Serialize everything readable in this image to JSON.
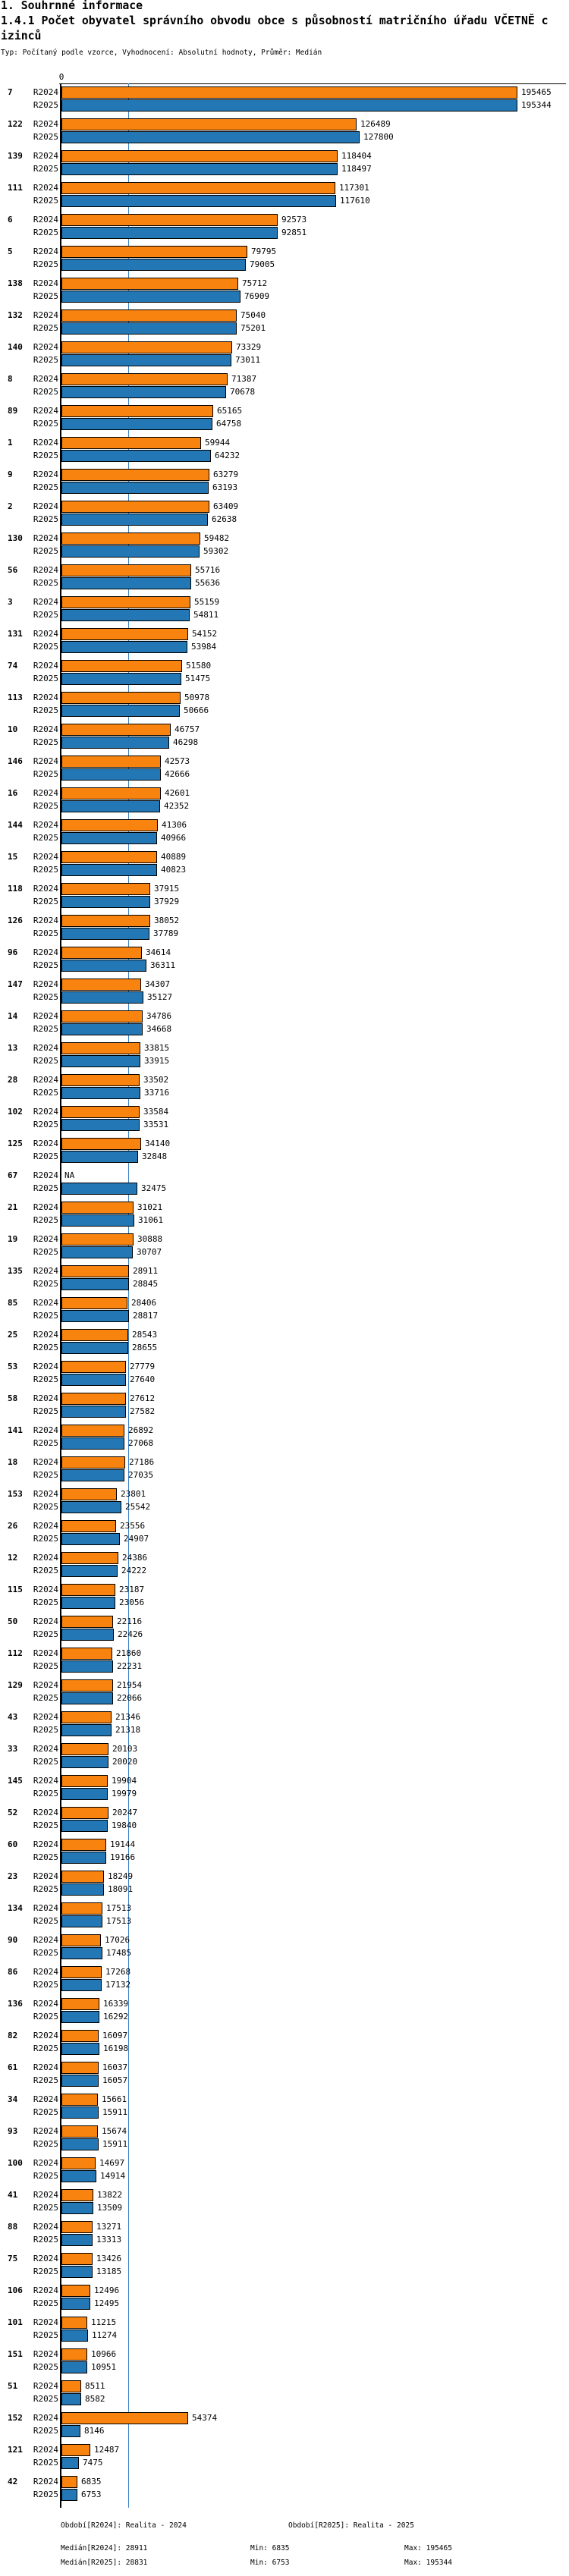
{
  "header": {
    "line1": "1. Souhrnné informace",
    "line2": "1.4.1 Počet obyvatel správního obvodu obce s působností matričního úřadu VČETNĚ c",
    "line3": "izinců",
    "meta": "Typ: Počítaný podle vzorce, Vyhodnocení: Absolutní hodnoty, Průměr: Medián"
  },
  "chart_data": {
    "type": "bar",
    "orientation": "horizontal",
    "title": "1.4.1 Počet obyvatel správního obvodu obce s působností matričního úřadu VČETNĚ cizinců",
    "axis": {
      "zero_label": "0",
      "value_max": 195465
    },
    "legend_position": "per-row-labels",
    "grid": false,
    "na_label": "NA",
    "series": [
      {
        "name": "R2024",
        "color": "#F8830E"
      },
      {
        "name": "R2025",
        "color": "#2277B4"
      }
    ],
    "median_line": {
      "series": "R2024",
      "value": 28911,
      "color": "#3B82C4"
    },
    "rows": [
      {
        "id": "7",
        "r2024": 195465,
        "r2025": 195344
      },
      {
        "id": "122",
        "r2024": 126489,
        "r2025": 127800
      },
      {
        "id": "139",
        "r2024": 118404,
        "r2025": 118497
      },
      {
        "id": "111",
        "r2024": 117301,
        "r2025": 117610
      },
      {
        "id": "6",
        "r2024": 92573,
        "r2025": 92851
      },
      {
        "id": "5",
        "r2024": 79795,
        "r2025": 79005
      },
      {
        "id": "138",
        "r2024": 75712,
        "r2025": 76909
      },
      {
        "id": "132",
        "r2024": 75040,
        "r2025": 75201
      },
      {
        "id": "140",
        "r2024": 73329,
        "r2025": 73011
      },
      {
        "id": "8",
        "r2024": 71387,
        "r2025": 70678
      },
      {
        "id": "89",
        "r2024": 65165,
        "r2025": 64758
      },
      {
        "id": "1",
        "r2024": 59944,
        "r2025": 64232
      },
      {
        "id": "9",
        "r2024": 63279,
        "r2025": 63193
      },
      {
        "id": "2",
        "r2024": 63409,
        "r2025": 62638
      },
      {
        "id": "130",
        "r2024": 59482,
        "r2025": 59302
      },
      {
        "id": "56",
        "r2024": 55716,
        "r2025": 55636
      },
      {
        "id": "3",
        "r2024": 55159,
        "r2025": 54811
      },
      {
        "id": "131",
        "r2024": 54152,
        "r2025": 53984
      },
      {
        "id": "74",
        "r2024": 51580,
        "r2025": 51475
      },
      {
        "id": "113",
        "r2024": 50978,
        "r2025": 50666
      },
      {
        "id": "10",
        "r2024": 46757,
        "r2025": 46298
      },
      {
        "id": "146",
        "r2024": 42573,
        "r2025": 42666
      },
      {
        "id": "16",
        "r2024": 42601,
        "r2025": 42352
      },
      {
        "id": "144",
        "r2024": 41306,
        "r2025": 40966
      },
      {
        "id": "15",
        "r2024": 40889,
        "r2025": 40823
      },
      {
        "id": "118",
        "r2024": 37915,
        "r2025": 37929
      },
      {
        "id": "126",
        "r2024": 38052,
        "r2025": 37789
      },
      {
        "id": "96",
        "r2024": 34614,
        "r2025": 36311
      },
      {
        "id": "147",
        "r2024": 34307,
        "r2025": 35127
      },
      {
        "id": "14",
        "r2024": 34786,
        "r2025": 34668
      },
      {
        "id": "13",
        "r2024": 33815,
        "r2025": 33915
      },
      {
        "id": "28",
        "r2024": 33502,
        "r2025": 33716
      },
      {
        "id": "102",
        "r2024": 33584,
        "r2025": 33531
      },
      {
        "id": "125",
        "r2024": 34140,
        "r2025": 32848
      },
      {
        "id": "67",
        "r2024": "NA",
        "r2025": 32475
      },
      {
        "id": "21",
        "r2024": 31021,
        "r2025": 31061
      },
      {
        "id": "19",
        "r2024": 30888,
        "r2025": 30707
      },
      {
        "id": "135",
        "r2024": 28911,
        "r2025": 28845
      },
      {
        "id": "85",
        "r2024": 28406,
        "r2025": 28817
      },
      {
        "id": "25",
        "r2024": 28543,
        "r2025": 28655
      },
      {
        "id": "53",
        "r2024": 27779,
        "r2025": 27640
      },
      {
        "id": "58",
        "r2024": 27612,
        "r2025": 27582
      },
      {
        "id": "141",
        "r2024": 26892,
        "r2025": 27068
      },
      {
        "id": "18",
        "r2024": 27186,
        "r2025": 27035
      },
      {
        "id": "153",
        "r2024": 23801,
        "r2025": 25542
      },
      {
        "id": "26",
        "r2024": 23556,
        "r2025": 24907
      },
      {
        "id": "12",
        "r2024": 24386,
        "r2025": 24222
      },
      {
        "id": "115",
        "r2024": 23187,
        "r2025": 23056
      },
      {
        "id": "50",
        "r2024": 22116,
        "r2025": 22426
      },
      {
        "id": "112",
        "r2024": 21860,
        "r2025": 22231
      },
      {
        "id": "129",
        "r2024": 21954,
        "r2025": 22066
      },
      {
        "id": "43",
        "r2024": 21346,
        "r2025": 21318
      },
      {
        "id": "33",
        "r2024": 20103,
        "r2025": 20020
      },
      {
        "id": "145",
        "r2024": 19904,
        "r2025": 19979
      },
      {
        "id": "52",
        "r2024": 20247,
        "r2025": 19840
      },
      {
        "id": "60",
        "r2024": 19144,
        "r2025": 19166
      },
      {
        "id": "23",
        "r2024": 18249,
        "r2025": 18091
      },
      {
        "id": "134",
        "r2024": 17513,
        "r2025": 17513
      },
      {
        "id": "90",
        "r2024": 17026,
        "r2025": 17485
      },
      {
        "id": "86",
        "r2024": 17268,
        "r2025": 17132
      },
      {
        "id": "136",
        "r2024": 16339,
        "r2025": 16292
      },
      {
        "id": "82",
        "r2024": 16097,
        "r2025": 16198
      },
      {
        "id": "61",
        "r2024": 16037,
        "r2025": 16057
      },
      {
        "id": "34",
        "r2024": 15661,
        "r2025": 15911
      },
      {
        "id": "93",
        "r2024": 15674,
        "r2025": 15911
      },
      {
        "id": "100",
        "r2024": 14697,
        "r2025": 14914
      },
      {
        "id": "41",
        "r2024": 13822,
        "r2025": 13509
      },
      {
        "id": "88",
        "r2024": 13271,
        "r2025": 13313
      },
      {
        "id": "75",
        "r2024": 13426,
        "r2025": 13185
      },
      {
        "id": "106",
        "r2024": 12496,
        "r2025": 12495
      },
      {
        "id": "101",
        "r2024": 11215,
        "r2025": 11274
      },
      {
        "id": "151",
        "r2024": 10966,
        "r2025": 10951
      },
      {
        "id": "51",
        "r2024": 8511,
        "r2025": 8582
      },
      {
        "id": "152",
        "r2024": 54374,
        "r2025": 8146
      },
      {
        "id": "121",
        "r2024": 12487,
        "r2025": 7475
      },
      {
        "id": "42",
        "r2024": 6835,
        "r2025": 6753
      }
    ]
  },
  "footer": {
    "periods": [
      {
        "label": "Období[R2024]: Realita - 2024"
      },
      {
        "label": "Období[R2025]: Realita - 2025"
      }
    ],
    "stats": [
      {
        "median": "Medián[R2024]: 28911",
        "min": "Min: 6835",
        "max": "Max: 195465"
      },
      {
        "median": "Medián[R2025]: 28831",
        "min": "Min: 6753",
        "max": "Max: 195344"
      }
    ]
  }
}
